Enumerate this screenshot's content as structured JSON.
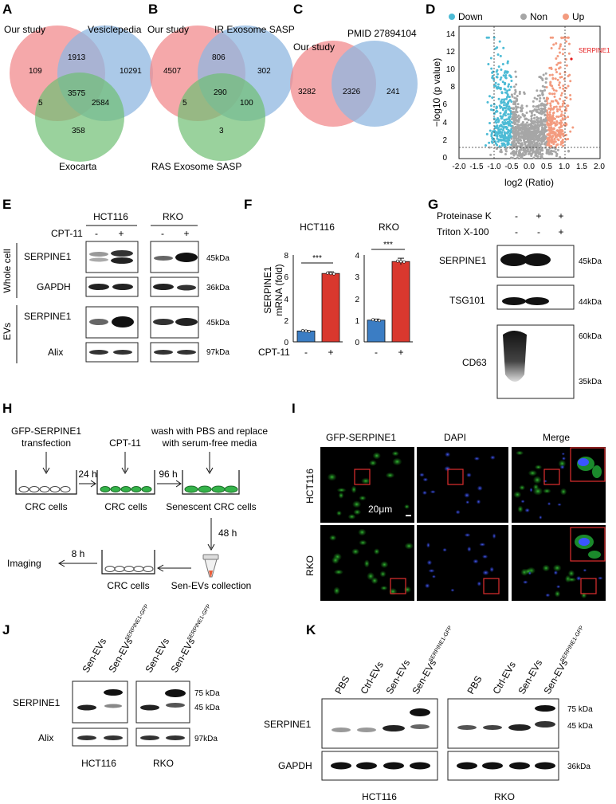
{
  "panels": {
    "A": {
      "label": "A",
      "sets": [
        "Our study",
        "Vesiclepedia",
        "Exocarta"
      ],
      "regions": {
        "a_only": "109",
        "ab": "1913",
        "b_only": "10291",
        "abc": "3575",
        "ac": "5",
        "bc": "2584",
        "c_only": "358"
      },
      "colors": {
        "a": "#f28b8e",
        "b": "#8fb7e0",
        "c": "#6fbf73"
      }
    },
    "B": {
      "label": "B",
      "sets": [
        "Our study",
        "IR Exosome SASP",
        "RAS Exosome SASP"
      ],
      "regions": {
        "a_only": "4507",
        "ab": "806",
        "b_only": "302",
        "abc": "290",
        "ac": "5",
        "bc": "100",
        "c_only": "3"
      }
    },
    "C": {
      "label": "C",
      "sets": [
        "Our study",
        "PMID 27894104"
      ],
      "regions": {
        "a_only": "3282",
        "ab": "2326",
        "b_only": "241"
      }
    },
    "D": {
      "label": "D",
      "legend": [
        "Down",
        "Non",
        "Up"
      ],
      "colors": {
        "down": "#4dbbd5",
        "non": "#a6a6a6",
        "up": "#f39b7f",
        "highlight": "#e41a1c"
      },
      "xlabel": "log2 (Ratio)",
      "ylabel": "−log10 (p value)",
      "xticks": [
        "-2.0",
        "-1.5",
        "-1.0",
        "-0.5",
        "0.0",
        "0.5",
        "1.0",
        "1.5",
        "2.0"
      ],
      "yticks": [
        "0",
        "2",
        "4",
        "6",
        "8",
        "10",
        "12",
        "14"
      ],
      "highlight_label": "SERPINE1"
    },
    "E": {
      "label": "E",
      "cell_lines": [
        "HCT116",
        "RKO"
      ],
      "treatment": "CPT-11",
      "signs": [
        "-",
        "+",
        "-",
        "+"
      ],
      "rows": [
        "SERPINE1",
        "GAPDH",
        "SERPINE1",
        "Alix"
      ],
      "sizes": [
        "45kDa",
        "36kDa",
        "45kDa",
        "97kDa"
      ],
      "groups": [
        "Whole cell",
        "EVs"
      ]
    },
    "F": {
      "label": "F",
      "charts": [
        "HCT116",
        "RKO"
      ],
      "ylabel": "SERPINE1\nmRNA (fold)",
      "treatment": "CPT-11",
      "signs": [
        "-",
        "+"
      ],
      "sig": "***",
      "yticks_left": [
        "0",
        "2",
        "4",
        "6",
        "8"
      ],
      "yticks_right": [
        "0",
        "1",
        "2",
        "3",
        "4"
      ]
    },
    "G": {
      "label": "G",
      "conditions": [
        "Proteinase K",
        "Triton X-100"
      ],
      "signs_pk": [
        "-",
        "+",
        "+"
      ],
      "signs_tx": [
        "-",
        "-",
        "+"
      ],
      "rows": [
        "SERPINE1",
        "TSG101",
        "CD63"
      ],
      "sizes": [
        "45kDa",
        "44kDa",
        "60kDa",
        "35kDa"
      ]
    },
    "H": {
      "label": "H",
      "step1": "GFP-SERPINE1",
      "step1b": "transfection",
      "step2": "CPT-11",
      "step3": "wash with PBS and replace",
      "step3b": "with serum-free media",
      "time1": "24 h",
      "time2": "96 h",
      "time3": "48 h",
      "time4": "8 h",
      "dish1": "CRC cells",
      "dish2": "CRC cells",
      "dish3": "Senescent CRC cells",
      "collect": "Sen-EVs collection",
      "dish4": "CRC cells",
      "end": "Imaging"
    },
    "I": {
      "label": "I",
      "columns": [
        "GFP-SERPINE1",
        "DAPI",
        "Merge"
      ],
      "rows": [
        "HCT116",
        "RKO"
      ],
      "scale": "20μm"
    },
    "J": {
      "label": "J",
      "lanes": [
        "Sen-EVs",
        "Sen-EVs",
        "Sen-EVs",
        "Sen-EVs"
      ],
      "superscript": "SERPINE1-GFP",
      "rows": [
        "SERPINE1",
        "Alix"
      ],
      "sizes": [
        "75 kDa",
        "45 kDa",
        "97kDa"
      ],
      "cell_lines": [
        "HCT116",
        "RKO"
      ]
    },
    "K": {
      "label": "K",
      "lanes": [
        "PBS",
        "Ctrl-EVs",
        "Sen-EVs",
        "Sen-EVs"
      ],
      "superscript": "SERPINE1-GFP",
      "rows": [
        "SERPINE1",
        "GAPDH"
      ],
      "sizes": [
        "75 kDa",
        "45 kDa",
        "36kDa"
      ],
      "cell_lines": [
        "HCT116",
        "RKO"
      ]
    }
  },
  "chart_data": [
    {
      "type": "bar",
      "title": "HCT116",
      "ylabel": "SERPINE1 mRNA (fold)",
      "categories": [
        "-",
        "+"
      ],
      "values": [
        1.0,
        6.3
      ],
      "ylim": [
        0,
        8
      ],
      "colors": [
        "#3b7dc4",
        "#d9382e"
      ]
    },
    {
      "type": "bar",
      "title": "RKO",
      "categories": [
        "-",
        "+"
      ],
      "values": [
        1.0,
        3.7
      ],
      "ylim": [
        0,
        4
      ],
      "colors": [
        "#3b7dc4",
        "#d9382e"
      ]
    }
  ]
}
